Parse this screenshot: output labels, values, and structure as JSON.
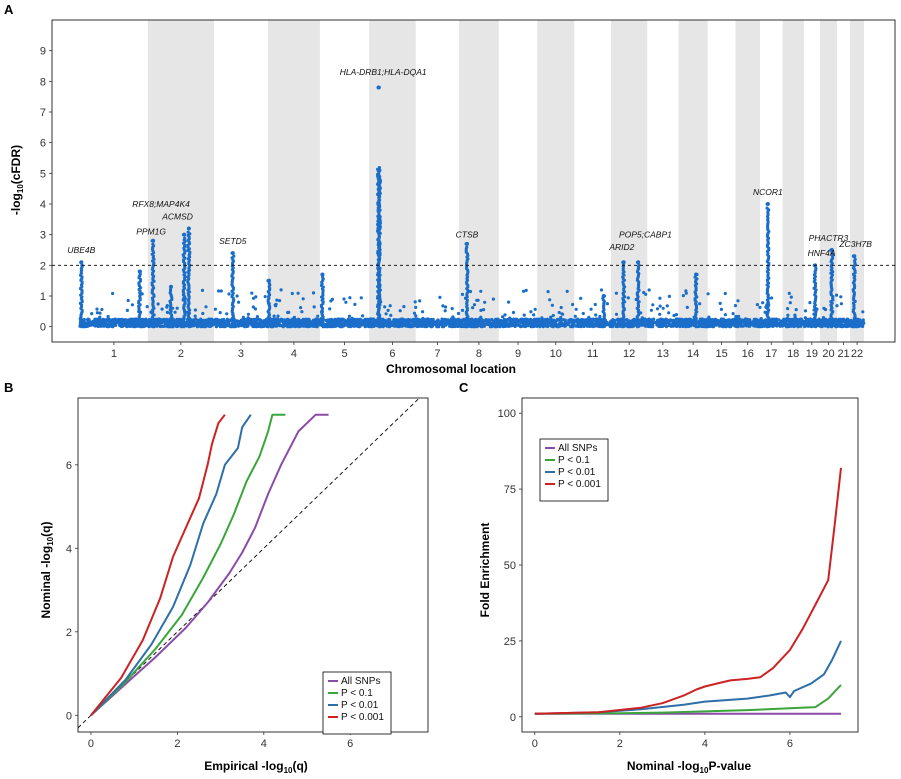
{
  "chart_data": [
    {
      "panel": "A",
      "type": "scatter",
      "xlabel": "Chromosomal location",
      "ylabel_main": "-log",
      "ylabel_sub": "10",
      "ylabel_tail": "(cFDR)",
      "ylim": [
        -0.5,
        10
      ],
      "yticks": [
        "0",
        "1",
        "2",
        "3",
        "4",
        "5",
        "6",
        "7",
        "8",
        "9"
      ],
      "threshold": 2,
      "point_color": "#1a6ec9",
      "shade_color": "#e6e6e6",
      "chromosomes": [
        {
          "label": "1",
          "size": 249
        },
        {
          "label": "2",
          "size": 243
        },
        {
          "label": "3",
          "size": 198
        },
        {
          "label": "4",
          "size": 191
        },
        {
          "label": "5",
          "size": 181
        },
        {
          "label": "6",
          "size": 171
        },
        {
          "label": "7",
          "size": 159
        },
        {
          "label": "8",
          "size": 146
        },
        {
          "label": "9",
          "size": 141
        },
        {
          "label": "10",
          "size": 136
        },
        {
          "label": "11",
          "size": 135
        },
        {
          "label": "12",
          "size": 133
        },
        {
          "label": "13",
          "size": 115
        },
        {
          "label": "14",
          "size": 107
        },
        {
          "label": "15",
          "size": 102
        },
        {
          "label": "16",
          "size": 90
        },
        {
          "label": "17",
          "size": 83
        },
        {
          "label": "18",
          "size": 78
        },
        {
          "label": "19",
          "size": 59
        },
        {
          "label": "20",
          "size": 63
        },
        {
          "label": "21",
          "size": 48
        },
        {
          "label": "22",
          "size": 51
        }
      ],
      "peaks": [
        {
          "chr": 1,
          "pos": 0.02,
          "value": 2.1
        },
        {
          "chr": 1,
          "pos": 0.88,
          "value": 1.8
        },
        {
          "chr": 2,
          "pos": 0.08,
          "value": 2.8
        },
        {
          "chr": 2,
          "pos": 0.35,
          "value": 1.3
        },
        {
          "chr": 2,
          "pos": 0.55,
          "value": 3.0
        },
        {
          "chr": 2,
          "pos": 0.62,
          "value": 3.2
        },
        {
          "chr": 3,
          "pos": 0.35,
          "value": 2.4
        },
        {
          "chr": 4,
          "pos": 0.02,
          "value": 1.5
        },
        {
          "chr": 5,
          "pos": 0.05,
          "value": 1.7
        },
        {
          "chr": 6,
          "pos": 0.2,
          "value": 7.8
        },
        {
          "chr": 6,
          "pos": 0.22,
          "value": 5.1
        },
        {
          "chr": 8,
          "pos": 0.2,
          "value": 2.7
        },
        {
          "chr": 11,
          "pos": 0.8,
          "value": 1.0
        },
        {
          "chr": 12,
          "pos": 0.35,
          "value": 2.1
        },
        {
          "chr": 12,
          "pos": 0.75,
          "value": 2.1
        },
        {
          "chr": 14,
          "pos": 0.6,
          "value": 1.7
        },
        {
          "chr": 17,
          "pos": 0.35,
          "value": 4.0
        },
        {
          "chr": 19,
          "pos": 0.7,
          "value": 2.0
        },
        {
          "chr": 20,
          "pos": 0.7,
          "value": 2.5
        },
        {
          "chr": 22,
          "pos": 0.3,
          "value": 2.3
        }
      ],
      "annotations": [
        {
          "label": "UBE4B",
          "chr": 1,
          "pos": 0.02,
          "value": 2.4
        },
        {
          "label": "PPM1G",
          "chr": 2,
          "pos": 0.05,
          "value": 3.0
        },
        {
          "label": "RFX8;MAP4K4",
          "chr": 2,
          "pos": 0.2,
          "value": 3.9
        },
        {
          "label": "ACMSD",
          "chr": 2,
          "pos": 0.45,
          "value": 3.5
        },
        {
          "label": "SETD5",
          "chr": 3,
          "pos": 0.35,
          "value": 2.7
        },
        {
          "label": "HLA-DRB1;HLA-DQA1",
          "chr": 6,
          "pos": 0.3,
          "value": 8.2
        },
        {
          "label": "CTSB",
          "chr": 8,
          "pos": 0.2,
          "value": 2.9
        },
        {
          "label": "POP5;CABP1",
          "chr": 12,
          "pos": 0.95,
          "value": 2.9
        },
        {
          "label": "ARID2",
          "chr": 12,
          "pos": 0.3,
          "value": 2.5
        },
        {
          "label": "NCOR1",
          "chr": 17,
          "pos": 0.35,
          "value": 4.3
        },
        {
          "label": "PHACTR3",
          "chr": 20,
          "pos": 0.5,
          "value": 2.8
        },
        {
          "label": "HNF4A",
          "chr": 20,
          "pos": 0.1,
          "value": 2.3
        },
        {
          "label": "ZC3H7B",
          "chr": 22,
          "pos": 0.4,
          "value": 2.6
        }
      ]
    },
    {
      "panel": "B",
      "type": "line",
      "xlabel_main": "Empirical -log",
      "xlabel_sub": "10",
      "xlabel_tail": "(q)",
      "ylabel_main": "Nominal -log",
      "ylabel_sub": "10",
      "ylabel_tail": "(q)",
      "xlim": [
        -0.3,
        7.8
      ],
      "ylim": [
        -0.4,
        7.6
      ],
      "xticks": [
        0,
        2,
        4,
        6
      ],
      "yticks": [
        0,
        2,
        4,
        6
      ],
      "legend": [
        "All SNPs",
        "P < 0.1",
        "P < 0.01",
        "P < 0.001"
      ],
      "series": [
        {
          "name": "All SNPs",
          "color": "#8b4ca8",
          "points": [
            [
              0,
              0
            ],
            [
              0.8,
              0.75
            ],
            [
              1.5,
              1.4
            ],
            [
              2.2,
              2.1
            ],
            [
              2.7,
              2.7
            ],
            [
              3.2,
              3.4
            ],
            [
              3.5,
              3.9
            ],
            [
              3.8,
              4.5
            ],
            [
              4.1,
              5.3
            ],
            [
              4.4,
              6.0
            ],
            [
              4.8,
              6.8
            ],
            [
              5.2,
              7.2
            ],
            [
              5.5,
              7.2
            ]
          ]
        },
        {
          "name": "P < 0.1",
          "color": "#3aa63a",
          "points": [
            [
              0,
              0
            ],
            [
              0.8,
              0.8
            ],
            [
              1.5,
              1.6
            ],
            [
              2.1,
              2.4
            ],
            [
              2.6,
              3.3
            ],
            [
              3.0,
              4.1
            ],
            [
              3.3,
              4.8
            ],
            [
              3.6,
              5.6
            ],
            [
              3.9,
              6.2
            ],
            [
              4.1,
              6.8
            ],
            [
              4.2,
              7.2
            ],
            [
              4.5,
              7.2
            ]
          ]
        },
        {
          "name": "P < 0.01",
          "color": "#2e6fa8",
          "points": [
            [
              0,
              0
            ],
            [
              0.8,
              0.85
            ],
            [
              1.4,
              1.7
            ],
            [
              1.9,
              2.6
            ],
            [
              2.3,
              3.6
            ],
            [
              2.6,
              4.6
            ],
            [
              2.9,
              5.3
            ],
            [
              3.1,
              6.0
            ],
            [
              3.4,
              6.4
            ],
            [
              3.5,
              6.9
            ],
            [
              3.7,
              7.2
            ]
          ]
        },
        {
          "name": "P < 0.001",
          "color": "#cc2222",
          "points": [
            [
              0,
              0
            ],
            [
              0.7,
              0.9
            ],
            [
              1.2,
              1.8
            ],
            [
              1.6,
              2.8
            ],
            [
              1.9,
              3.8
            ],
            [
              2.2,
              4.5
            ],
            [
              2.5,
              5.2
            ],
            [
              2.7,
              6.0
            ],
            [
              2.8,
              6.5
            ],
            [
              2.95,
              7.0
            ],
            [
              3.1,
              7.2
            ]
          ]
        }
      ]
    },
    {
      "panel": "C",
      "type": "line",
      "xlabel_main": "Nominal -log",
      "xlabel_sub": "10",
      "xlabel_tail": "P-value",
      "ylabel": "Fold Enrichment",
      "xlim": [
        -0.3,
        7.6
      ],
      "ylim": [
        -5,
        105
      ],
      "xticks": [
        0,
        2,
        4,
        6
      ],
      "yticks": [
        0,
        25,
        50,
        75,
        100
      ],
      "legend": [
        "All SNPs",
        "P < 0.1",
        "P < 0.01",
        "P < 0.001"
      ],
      "series": [
        {
          "name": "All SNPs",
          "color": "#8b4ca8",
          "points": [
            [
              0,
              1
            ],
            [
              7.2,
              1
            ]
          ]
        },
        {
          "name": "P < 0.1",
          "color": "#3aa63a",
          "points": [
            [
              0,
              1
            ],
            [
              2,
              1.2
            ],
            [
              3,
              1.4
            ],
            [
              4,
              1.8
            ],
            [
              5,
              2.2
            ],
            [
              6,
              2.8
            ],
            [
              6.6,
              3.2
            ],
            [
              6.9,
              6
            ],
            [
              7.2,
              10.5
            ]
          ]
        },
        {
          "name": "P < 0.01",
          "color": "#2e6fa8",
          "points": [
            [
              0,
              1
            ],
            [
              1.5,
              1.5
            ],
            [
              2.5,
              2.5
            ],
            [
              3.5,
              4
            ],
            [
              4,
              5
            ],
            [
              4.5,
              5.5
            ],
            [
              5,
              6
            ],
            [
              5.5,
              7
            ],
            [
              5.9,
              8
            ],
            [
              6.0,
              6.5
            ],
            [
              6.1,
              8.5
            ],
            [
              6.5,
              11
            ],
            [
              6.8,
              14
            ],
            [
              7.0,
              19
            ],
            [
              7.2,
              25
            ]
          ]
        },
        {
          "name": "P < 0.001",
          "color": "#cc2222",
          "points": [
            [
              0,
              1
            ],
            [
              1.5,
              1.5
            ],
            [
              2.5,
              3
            ],
            [
              3.0,
              4.5
            ],
            [
              3.5,
              7
            ],
            [
              3.8,
              9
            ],
            [
              4.0,
              10
            ],
            [
              4.3,
              11
            ],
            [
              4.6,
              12
            ],
            [
              5.0,
              12.5
            ],
            [
              5.3,
              13
            ],
            [
              5.6,
              16
            ],
            [
              6.0,
              22
            ],
            [
              6.3,
              29
            ],
            [
              6.6,
              37
            ],
            [
              6.9,
              45
            ],
            [
              7.05,
              63
            ],
            [
              7.2,
              82
            ]
          ]
        }
      ]
    }
  ]
}
